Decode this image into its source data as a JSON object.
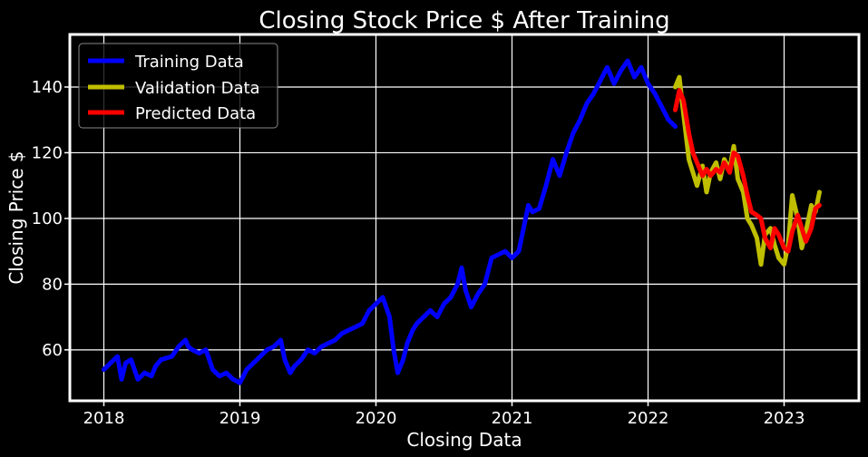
{
  "chart_data": {
    "type": "line",
    "title": "Closing Stock Price $ After Training",
    "xlabel": "Closing Data",
    "ylabel": "Closing Price $",
    "xlim": [
      2017.75,
      2023.55
    ],
    "ylim": [
      44.5,
      156
    ],
    "x_ticks": [
      2018,
      2019,
      2020,
      2021,
      2022,
      2023
    ],
    "x_tick_labels": [
      "2018",
      "2019",
      "2020",
      "2021",
      "2022",
      "2023"
    ],
    "y_ticks": [
      60,
      80,
      100,
      120,
      140
    ],
    "y_tick_labels": [
      "60",
      "80",
      "100",
      "120",
      "140"
    ],
    "grid": true,
    "legend_position": "upper-left",
    "background": "#000000",
    "series": [
      {
        "name": "Training Data",
        "color": "#0000ff",
        "x": [
          2018.0,
          2018.05,
          2018.1,
          2018.13,
          2018.16,
          2018.2,
          2018.25,
          2018.3,
          2018.35,
          2018.38,
          2018.42,
          2018.5,
          2018.55,
          2018.6,
          2018.62,
          2018.65,
          2018.7,
          2018.75,
          2018.8,
          2018.85,
          2018.9,
          2018.95,
          2019.0,
          2019.05,
          2019.1,
          2019.15,
          2019.2,
          2019.25,
          2019.3,
          2019.33,
          2019.37,
          2019.4,
          2019.45,
          2019.5,
          2019.55,
          2019.6,
          2019.65,
          2019.7,
          2019.75,
          2019.8,
          2019.85,
          2019.9,
          2019.95,
          2020.0,
          2020.05,
          2020.1,
          2020.13,
          2020.16,
          2020.2,
          2020.23,
          2020.27,
          2020.3,
          2020.35,
          2020.4,
          2020.45,
          2020.5,
          2020.55,
          2020.6,
          2020.63,
          2020.66,
          2020.7,
          2020.75,
          2020.8,
          2020.85,
          2020.9,
          2020.95,
          2021.0,
          2021.05,
          2021.08,
          2021.12,
          2021.15,
          2021.2,
          2021.25,
          2021.3,
          2021.35,
          2021.4,
          2021.45,
          2021.5,
          2021.55,
          2021.6,
          2021.65,
          2021.7,
          2021.75,
          2021.8,
          2021.85,
          2021.9,
          2021.95,
          2022.0,
          2022.05,
          2022.1,
          2022.15,
          2022.2
        ],
        "y": [
          54,
          56,
          58,
          51,
          56,
          57,
          51,
          53,
          52,
          55,
          57,
          58,
          61,
          63,
          61,
          60,
          59,
          60,
          54,
          52,
          53,
          51,
          50,
          54,
          56,
          58,
          60,
          61,
          63,
          57,
          53,
          55,
          57,
          60,
          59,
          61,
          62,
          63,
          65,
          66,
          67,
          68,
          72,
          74,
          76,
          70,
          60,
          53,
          57,
          62,
          66,
          68,
          70,
          72,
          70,
          74,
          76,
          80,
          85,
          78,
          73,
          77,
          80,
          88,
          89,
          90,
          88,
          90,
          96,
          104,
          102,
          103,
          110,
          118,
          113,
          120,
          126,
          130,
          135,
          138,
          142,
          146,
          141,
          145,
          148,
          143,
          146,
          141,
          138,
          134,
          130,
          128
        ]
      },
      {
        "name": "Validation Data",
        "color": "#bfbf00",
        "x": [
          2022.2,
          2022.23,
          2022.26,
          2022.3,
          2022.33,
          2022.36,
          2022.4,
          2022.43,
          2022.46,
          2022.5,
          2022.53,
          2022.56,
          2022.6,
          2022.63,
          2022.66,
          2022.7,
          2022.73,
          2022.76,
          2022.8,
          2022.83,
          2022.86,
          2022.9,
          2022.93,
          2022.96,
          2023.0,
          2023.03,
          2023.06,
          2023.1,
          2023.13,
          2023.16,
          2023.2,
          2023.23,
          2023.26
        ],
        "y": [
          140,
          143,
          132,
          118,
          114,
          110,
          116,
          108,
          114,
          117,
          112,
          118,
          115,
          122,
          112,
          108,
          100,
          98,
          94,
          86,
          95,
          97,
          92,
          88,
          86,
          92,
          107,
          100,
          91,
          96,
          104,
          102,
          108
        ]
      },
      {
        "name": "Predicted Data",
        "color": "#ff0000",
        "x": [
          2022.2,
          2022.23,
          2022.26,
          2022.3,
          2022.33,
          2022.36,
          2022.4,
          2022.43,
          2022.46,
          2022.5,
          2022.53,
          2022.56,
          2022.6,
          2022.63,
          2022.66,
          2022.7,
          2022.73,
          2022.76,
          2022.8,
          2022.83,
          2022.86,
          2022.9,
          2022.93,
          2022.96,
          2023.0,
          2023.03,
          2023.06,
          2023.1,
          2023.13,
          2023.16,
          2023.2,
          2023.23,
          2023.26
        ],
        "y": [
          133,
          139,
          136,
          126,
          120,
          117,
          113,
          115,
          113,
          115,
          114,
          117,
          114,
          120,
          119,
          113,
          107,
          102,
          101,
          100,
          94,
          91,
          97,
          95,
          91,
          90,
          96,
          101,
          97,
          93,
          97,
          103,
          104
        ]
      }
    ]
  }
}
